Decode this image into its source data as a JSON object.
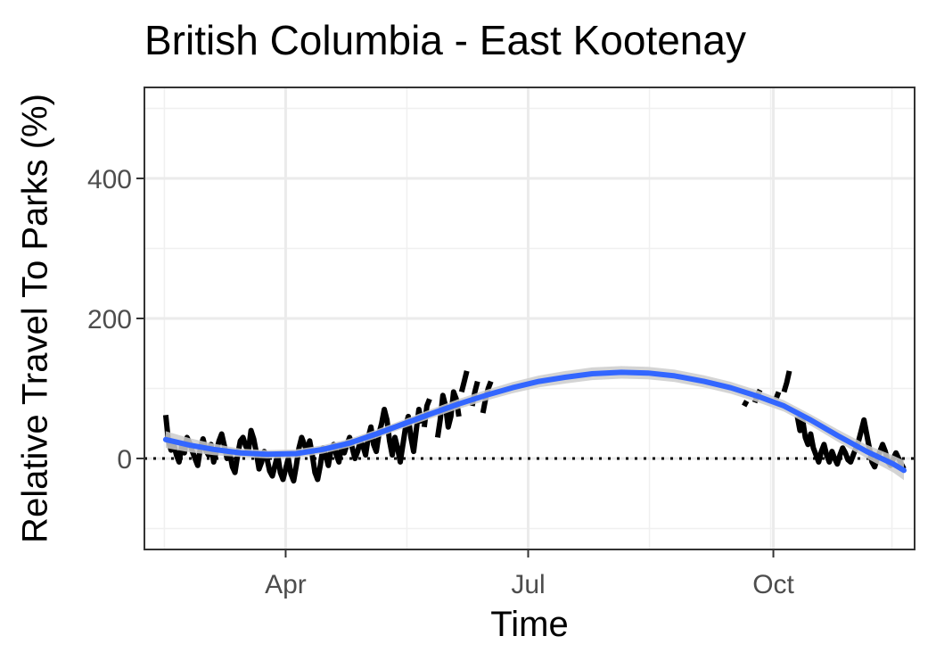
{
  "chart_data": {
    "type": "line",
    "title": "British Columbia - East Kootenay",
    "xlabel": "Time",
    "ylabel": "Relative Travel To Parks (%)",
    "xlim": [
      "2020-02-08",
      "2020-11-23"
    ],
    "ylim": [
      -130,
      530
    ],
    "x_ticks": [
      {
        "label": "Apr",
        "date": "2020-04-01"
      },
      {
        "label": "Jul",
        "date": "2020-07-01"
      },
      {
        "label": "Oct",
        "date": "2020-10-01"
      }
    ],
    "y_ticks": [
      0,
      200,
      400
    ],
    "grid": true,
    "reference_line": {
      "y": 0,
      "style": "dotted",
      "color": "#000000"
    },
    "series": [
      {
        "kind": "observed",
        "color": "#000000",
        "segments": [
          [
            [
              "2020-02-16",
              62
            ],
            [
              "2020-02-17",
              25
            ],
            [
              "2020-02-18",
              12
            ],
            [
              "2020-02-19",
              20
            ],
            [
              "2020-02-20",
              5
            ],
            [
              "2020-02-21",
              -5
            ],
            [
              "2020-02-22",
              18
            ],
            [
              "2020-02-23",
              8
            ],
            [
              "2020-02-24",
              30
            ],
            [
              "2020-02-25",
              22
            ],
            [
              "2020-02-26",
              10
            ],
            [
              "2020-02-27",
              0
            ],
            [
              "2020-02-28",
              -10
            ],
            [
              "2020-02-29",
              15
            ],
            [
              "2020-03-01",
              28
            ],
            [
              "2020-03-02",
              12
            ],
            [
              "2020-03-03",
              5
            ],
            [
              "2020-03-04",
              20
            ],
            [
              "2020-03-05",
              -5
            ],
            [
              "2020-03-06",
              10
            ],
            [
              "2020-03-07",
              25
            ],
            [
              "2020-03-08",
              35
            ],
            [
              "2020-03-09",
              18
            ],
            [
              "2020-03-10",
              0
            ],
            [
              "2020-03-11",
              8
            ],
            [
              "2020-03-12",
              -12
            ],
            [
              "2020-03-13",
              -20
            ],
            [
              "2020-03-14",
              5
            ],
            [
              "2020-03-15",
              25
            ],
            [
              "2020-03-16",
              30
            ],
            [
              "2020-03-17",
              18
            ],
            [
              "2020-03-18",
              10
            ],
            [
              "2020-03-19",
              40
            ],
            [
              "2020-03-20",
              28
            ],
            [
              "2020-03-21",
              8
            ],
            [
              "2020-03-22",
              -15
            ],
            [
              "2020-03-23",
              -5
            ],
            [
              "2020-03-24",
              10
            ],
            [
              "2020-03-25",
              0
            ],
            [
              "2020-03-26",
              -18
            ],
            [
              "2020-03-27",
              -25
            ],
            [
              "2020-03-28",
              -10
            ],
            [
              "2020-03-29",
              5
            ],
            [
              "2020-03-30",
              -20
            ],
            [
              "2020-03-31",
              -30
            ],
            [
              "2020-04-01",
              -15
            ],
            [
              "2020-04-02",
              0
            ],
            [
              "2020-04-03",
              -22
            ],
            [
              "2020-04-04",
              -32
            ],
            [
              "2020-04-05",
              -10
            ],
            [
              "2020-04-06",
              15
            ],
            [
              "2020-04-07",
              30
            ],
            [
              "2020-04-08",
              20
            ],
            [
              "2020-04-09",
              10
            ],
            [
              "2020-04-10",
              25
            ],
            [
              "2020-04-11",
              5
            ],
            [
              "2020-04-12",
              -20
            ],
            [
              "2020-04-13",
              -30
            ],
            [
              "2020-04-14",
              -10
            ],
            [
              "2020-04-15",
              15
            ],
            [
              "2020-04-16",
              5
            ],
            [
              "2020-04-17",
              -10
            ],
            [
              "2020-04-18",
              12
            ],
            [
              "2020-04-19",
              20
            ],
            [
              "2020-04-20",
              5
            ],
            [
              "2020-04-21",
              -5
            ],
            [
              "2020-04-22",
              18
            ],
            [
              "2020-04-23",
              8
            ],
            [
              "2020-04-24",
              20
            ],
            [
              "2020-04-25",
              30
            ],
            [
              "2020-04-26",
              15
            ],
            [
              "2020-04-27",
              0
            ],
            [
              "2020-04-28",
              10
            ],
            [
              "2020-04-29",
              25
            ],
            [
              "2020-04-30",
              18
            ],
            [
              "2020-05-01",
              5
            ],
            [
              "2020-05-02",
              30
            ],
            [
              "2020-05-03",
              45
            ],
            [
              "2020-05-04",
              20
            ],
            [
              "2020-05-05",
              10
            ],
            [
              "2020-05-06",
              35
            ],
            [
              "2020-05-07",
              50
            ],
            [
              "2020-05-08",
              70
            ],
            [
              "2020-05-09",
              55
            ],
            [
              "2020-05-10",
              25
            ],
            [
              "2020-05-11",
              5
            ],
            [
              "2020-05-12",
              30
            ],
            [
              "2020-05-13",
              15
            ],
            [
              "2020-05-14",
              -5
            ],
            [
              "2020-05-15",
              20
            ],
            [
              "2020-05-16",
              45
            ],
            [
              "2020-05-17",
              60
            ],
            [
              "2020-05-18",
              30
            ],
            [
              "2020-05-19",
              10
            ],
            [
              "2020-05-20",
              40
            ],
            [
              "2020-05-21",
              70
            ],
            [
              "2020-05-22",
              50
            ]
          ],
          [
            [
              "2020-05-23",
              45
            ],
            [
              "2020-05-24",
              75
            ],
            [
              "2020-05-25",
              85
            ]
          ],
          [
            [
              "2020-05-28",
              30
            ],
            [
              "2020-05-29",
              55
            ],
            [
              "2020-05-30",
              90
            ],
            [
              "2020-05-31",
              75
            ],
            [
              "2020-06-01",
              45
            ],
            [
              "2020-06-02",
              60
            ],
            [
              "2020-06-03",
              95
            ],
            [
              "2020-06-04",
              85
            ],
            [
              "2020-06-05",
              60
            ]
          ],
          [
            [
              "2020-06-06",
              95
            ],
            [
              "2020-06-07",
              110
            ],
            [
              "2020-06-08",
              125
            ]
          ],
          [
            [
              "2020-06-10",
              75
            ],
            [
              "2020-06-11",
              95
            ],
            [
              "2020-06-12",
              110
            ]
          ],
          [
            [
              "2020-06-14",
              65
            ],
            [
              "2020-06-15",
              85
            ],
            [
              "2020-06-16",
              100
            ],
            [
              "2020-06-17",
              110
            ]
          ],
          [
            [
              "2020-09-20",
              75
            ],
            [
              "2020-09-21",
              82
            ]
          ],
          [
            [
              "2020-09-24",
              80
            ],
            [
              "2020-09-25",
              90
            ],
            [
              "2020-09-26",
              98
            ]
          ],
          [
            [
              "2020-10-02",
              85
            ],
            [
              "2020-10-03",
              95
            ]
          ],
          [
            [
              "2020-10-05",
              95
            ],
            [
              "2020-10-06",
              108
            ],
            [
              "2020-10-07",
              125
            ]
          ],
          [
            [
              "2020-10-10",
              60
            ],
            [
              "2020-10-11",
              40
            ],
            [
              "2020-10-12",
              55
            ],
            [
              "2020-10-13",
              30
            ],
            [
              "2020-10-14",
              20
            ],
            [
              "2020-10-15",
              35
            ],
            [
              "2020-10-16",
              15
            ],
            [
              "2020-10-17",
              5
            ],
            [
              "2020-10-18",
              -5
            ],
            [
              "2020-10-19",
              10
            ],
            [
              "2020-10-20",
              20
            ],
            [
              "2020-10-21",
              5
            ],
            [
              "2020-10-22",
              -5
            ],
            [
              "2020-10-23",
              10
            ],
            [
              "2020-10-24",
              0
            ],
            [
              "2020-10-25",
              -8
            ],
            [
              "2020-10-26",
              5
            ],
            [
              "2020-10-27",
              15
            ],
            [
              "2020-10-28",
              8
            ],
            [
              "2020-10-29",
              -2
            ],
            [
              "2020-10-30",
              -5
            ],
            [
              "2020-10-31",
              5
            ],
            [
              "2020-11-01",
              15
            ],
            [
              "2020-11-02",
              25
            ],
            [
              "2020-11-03",
              40
            ],
            [
              "2020-11-04",
              55
            ],
            [
              "2020-11-05",
              35
            ],
            [
              "2020-11-06",
              15
            ],
            [
              "2020-11-07",
              -5
            ],
            [
              "2020-11-08",
              -12
            ],
            [
              "2020-11-09",
              0
            ],
            [
              "2020-11-10",
              10
            ],
            [
              "2020-11-11",
              20
            ],
            [
              "2020-11-12",
              10
            ],
            [
              "2020-11-13",
              -5
            ],
            [
              "2020-11-14",
              -10
            ],
            [
              "2020-11-15",
              0
            ],
            [
              "2020-11-16",
              8
            ],
            [
              "2020-11-17",
              0
            ],
            [
              "2020-11-18",
              -8
            ],
            [
              "2020-11-19",
              -15
            ]
          ]
        ]
      },
      {
        "kind": "smoothed",
        "color": "#3366ff",
        "band_color": "#cccccc",
        "points": [
          [
            "2020-02-16",
            27
          ],
          [
            "2020-02-25",
            19
          ],
          [
            "2020-03-05",
            13
          ],
          [
            "2020-03-15",
            8
          ],
          [
            "2020-03-25",
            6
          ],
          [
            "2020-04-05",
            7
          ],
          [
            "2020-04-15",
            13
          ],
          [
            "2020-04-25",
            22
          ],
          [
            "2020-05-05",
            35
          ],
          [
            "2020-05-15",
            49
          ],
          [
            "2020-05-25",
            63
          ],
          [
            "2020-06-05",
            78
          ],
          [
            "2020-06-15",
            90
          ],
          [
            "2020-06-25",
            101
          ],
          [
            "2020-07-05",
            110
          ],
          [
            "2020-07-15",
            116
          ],
          [
            "2020-07-25",
            121
          ],
          [
            "2020-08-05",
            123
          ],
          [
            "2020-08-15",
            122
          ],
          [
            "2020-08-25",
            118
          ],
          [
            "2020-09-05",
            110
          ],
          [
            "2020-09-15",
            101
          ],
          [
            "2020-09-25",
            89
          ],
          [
            "2020-10-05",
            75
          ],
          [
            "2020-10-15",
            55
          ],
          [
            "2020-10-25",
            33
          ],
          [
            "2020-11-05",
            10
          ],
          [
            "2020-11-15",
            -8
          ],
          [
            "2020-11-19",
            -17
          ]
        ],
        "band": [
          [
            "2020-02-16",
            12
          ],
          [
            "2020-03-15",
            6
          ],
          [
            "2020-05-15",
            6
          ],
          [
            "2020-07-15",
            9
          ],
          [
            "2020-08-15",
            9
          ],
          [
            "2020-10-15",
            8
          ],
          [
            "2020-11-10",
            10
          ],
          [
            "2020-11-19",
            14
          ]
        ]
      }
    ]
  }
}
